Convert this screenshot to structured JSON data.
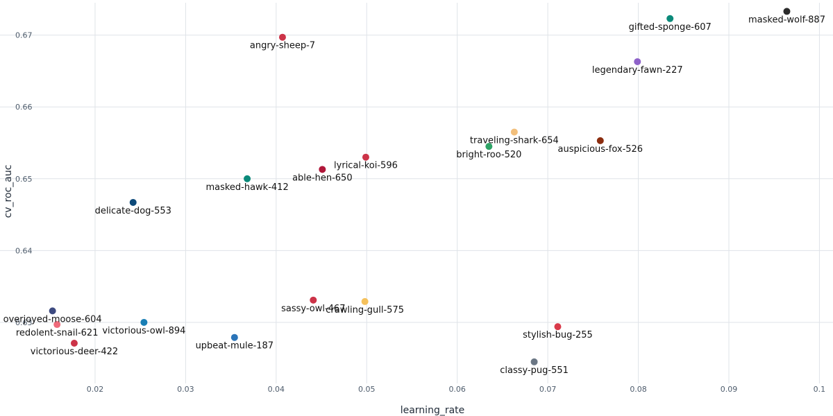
{
  "chart_data": {
    "type": "scatter",
    "title": "",
    "xlabel": "learning_rate",
    "ylabel": "cv_roc_auc",
    "xlim": [
      0.0095,
      0.1015
    ],
    "ylim": [
      0.6215,
      0.6745
    ],
    "x_ticks": [
      {
        "value": 0.02,
        "label": "0.02"
      },
      {
        "value": 0.03,
        "label": "0.03"
      },
      {
        "value": 0.04,
        "label": "0.04"
      },
      {
        "value": 0.05,
        "label": "0.05"
      },
      {
        "value": 0.06,
        "label": "0.06"
      },
      {
        "value": 0.07,
        "label": "0.07"
      },
      {
        "value": 0.08,
        "label": "0.08"
      },
      {
        "value": 0.09,
        "label": "0.09"
      },
      {
        "value": 0.1,
        "label": "0.1"
      }
    ],
    "y_ticks": [
      {
        "value": 0.63,
        "label": "0.63"
      },
      {
        "value": 0.64,
        "label": "0.64"
      },
      {
        "value": 0.65,
        "label": "0.65"
      },
      {
        "value": 0.66,
        "label": "0.66"
      },
      {
        "value": 0.67,
        "label": "0.67"
      }
    ],
    "grid": true,
    "legend": "none",
    "points": [
      {
        "label": "masked-wolf-887",
        "x": 0.0964,
        "y": 0.6733,
        "color": "#2b2b2b"
      },
      {
        "label": "gifted-sponge-607",
        "x": 0.0835,
        "y": 0.6723,
        "color": "#0b8a7a"
      },
      {
        "label": "angry-sheep-7",
        "x": 0.0407,
        "y": 0.6697,
        "color": "#cc3348"
      },
      {
        "label": "legendary-fawn-227",
        "x": 0.0799,
        "y": 0.6663,
        "color": "#8e62c9"
      },
      {
        "label": "traveling-shark-654",
        "x": 0.0663,
        "y": 0.6565,
        "color": "#f2bf7c"
      },
      {
        "label": "auspicious-fox-526",
        "x": 0.0758,
        "y": 0.6553,
        "color": "#8b2d0f"
      },
      {
        "label": "bright-roo-520",
        "x": 0.0635,
        "y": 0.6545,
        "color": "#2ea366"
      },
      {
        "label": "lyrical-koi-596",
        "x": 0.0499,
        "y": 0.653,
        "color": "#cc3348"
      },
      {
        "label": "able-hen-650",
        "x": 0.0451,
        "y": 0.6513,
        "color": "#b0173a"
      },
      {
        "label": "masked-hawk-412",
        "x": 0.0368,
        "y": 0.65,
        "color": "#0b8a7a"
      },
      {
        "label": "delicate-dog-553",
        "x": 0.0242,
        "y": 0.6467,
        "color": "#0d4a7a"
      },
      {
        "label": "sassy-owl-467",
        "x": 0.0441,
        "y": 0.6331,
        "color": "#cc3348"
      },
      {
        "label": "crawling-gull-575",
        "x": 0.0498,
        "y": 0.6329,
        "color": "#f5c15c"
      },
      {
        "label": "overjoyed-moose-604",
        "x": 0.0153,
        "y": 0.6316,
        "color": "#3d4a80"
      },
      {
        "label": "victorious-owl-894",
        "x": 0.0254,
        "y": 0.63,
        "color": "#1a7fb5"
      },
      {
        "label": "redolent-snail-621",
        "x": 0.0158,
        "y": 0.6297,
        "color": "#ef6b7b"
      },
      {
        "label": "stylish-bug-255",
        "x": 0.0711,
        "y": 0.6294,
        "color": "#d93a4a"
      },
      {
        "label": "upbeat-mule-187",
        "x": 0.0354,
        "y": 0.6279,
        "color": "#2b74b8"
      },
      {
        "label": "victorious-deer-422",
        "x": 0.0177,
        "y": 0.6271,
        "color": "#cc3348"
      },
      {
        "label": "classy-pug-551",
        "x": 0.0685,
        "y": 0.6245,
        "color": "#6b7785"
      }
    ]
  }
}
